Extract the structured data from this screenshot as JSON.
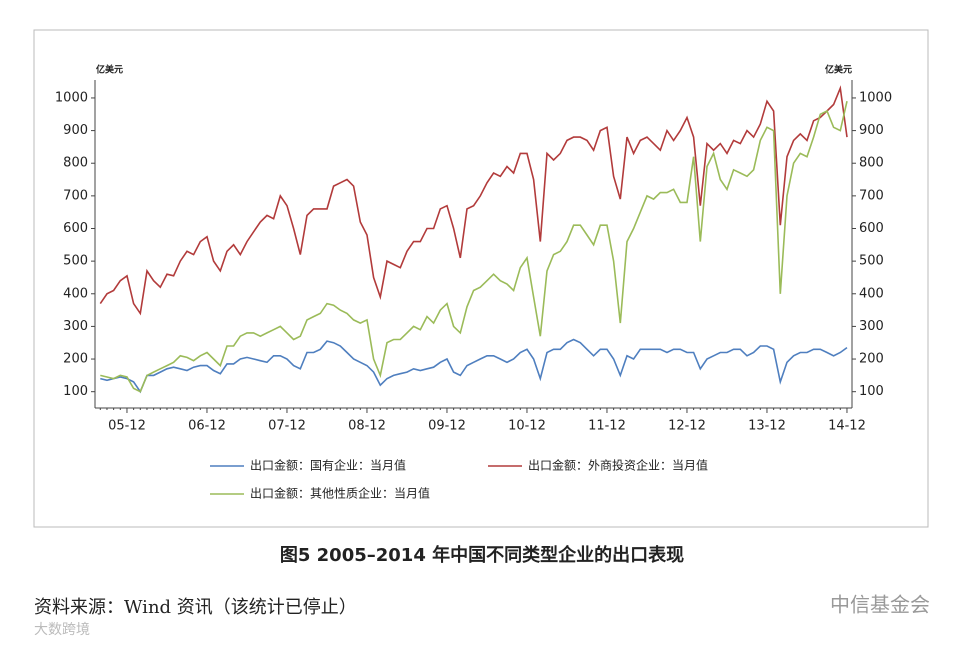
{
  "chart_data": {
    "type": "line",
    "y_label": "亿美元",
    "y2_label": "亿美元",
    "categories": [
      null,
      null,
      null,
      null,
      "05-12",
      null,
      null,
      null,
      null,
      null,
      null,
      null,
      null,
      null,
      null,
      null,
      "06-12",
      null,
      null,
      null,
      null,
      null,
      null,
      null,
      null,
      null,
      null,
      null,
      "07-12",
      null,
      null,
      null,
      null,
      null,
      null,
      null,
      null,
      null,
      null,
      null,
      "08-12",
      null,
      null,
      null,
      null,
      null,
      null,
      null,
      null,
      null,
      null,
      null,
      "09-12",
      null,
      null,
      null,
      null,
      null,
      null,
      null,
      null,
      null,
      null,
      null,
      "10-12",
      null,
      null,
      null,
      null,
      null,
      null,
      null,
      null,
      null,
      null,
      null,
      "11-12",
      null,
      null,
      null,
      null,
      null,
      null,
      null,
      null,
      null,
      null,
      null,
      "12-12",
      null,
      null,
      null,
      null,
      null,
      null,
      null,
      null,
      null,
      null,
      null,
      "13-12",
      null,
      null,
      null,
      null,
      null,
      null,
      null,
      null,
      null,
      null,
      null,
      "14-12"
    ],
    "series": [
      {
        "name": "出口金额：国有企业：当月值",
        "color": "#4f7fbf",
        "values": [
          140,
          135,
          140,
          145,
          140,
          130,
          100,
          150,
          150,
          160,
          170,
          175,
          170,
          165,
          175,
          180,
          180,
          165,
          155,
          185,
          185,
          200,
          205,
          200,
          195,
          190,
          210,
          210,
          200,
          180,
          170,
          220,
          220,
          230,
          255,
          250,
          240,
          220,
          200,
          190,
          180,
          160,
          120,
          140,
          150,
          155,
          160,
          170,
          165,
          170,
          175,
          190,
          200,
          160,
          150,
          180,
          190,
          200,
          210,
          210,
          200,
          190,
          200,
          220,
          230,
          200,
          140,
          220,
          230,
          230,
          250,
          260,
          250,
          230,
          210,
          230,
          230,
          200,
          150,
          210,
          200,
          230,
          230,
          230,
          230,
          220,
          230,
          230,
          220,
          220,
          170,
          200,
          210,
          220,
          220,
          230,
          230,
          210,
          220,
          240,
          240,
          230,
          130,
          190,
          210,
          220,
          220,
          230,
          230,
          220,
          210,
          220,
          235
        ]
      },
      {
        "name": "出口金额：外商投资企业：当月值",
        "color": "#b23b3b",
        "values": [
          370,
          400,
          410,
          440,
          455,
          370,
          340,
          470,
          440,
          420,
          460,
          455,
          500,
          530,
          520,
          560,
          575,
          500,
          470,
          530,
          550,
          520,
          560,
          590,
          620,
          640,
          630,
          700,
          670,
          600,
          520,
          640,
          660,
          660,
          660,
          730,
          740,
          750,
          730,
          620,
          580,
          450,
          390,
          500,
          490,
          480,
          530,
          560,
          560,
          600,
          600,
          660,
          670,
          600,
          510,
          660,
          670,
          700,
          740,
          770,
          760,
          790,
          770,
          830,
          830,
          750,
          560,
          830,
          810,
          830,
          870,
          880,
          880,
          870,
          840,
          900,
          910,
          760,
          690,
          880,
          830,
          870,
          880,
          860,
          840,
          900,
          870,
          900,
          940,
          880,
          670,
          860,
          840,
          860,
          830,
          870,
          860,
          900,
          880,
          920,
          990,
          960,
          610,
          820,
          870,
          890,
          870,
          930,
          940,
          960,
          980,
          1030,
          880
        ]
      },
      {
        "name": "出口金额：其他性质企业：当月值",
        "color": "#9bbb59",
        "values": [
          150,
          145,
          140,
          150,
          145,
          110,
          100,
          150,
          160,
          170,
          180,
          190,
          210,
          205,
          195,
          210,
          220,
          200,
          180,
          240,
          240,
          270,
          280,
          280,
          270,
          280,
          290,
          300,
          280,
          260,
          270,
          320,
          330,
          340,
          370,
          365,
          350,
          340,
          320,
          310,
          320,
          200,
          150,
          250,
          260,
          260,
          280,
          300,
          290,
          330,
          310,
          350,
          370,
          300,
          280,
          360,
          410,
          420,
          440,
          460,
          440,
          430,
          410,
          480,
          510,
          390,
          270,
          470,
          520,
          530,
          560,
          610,
          610,
          580,
          550,
          610,
          610,
          500,
          310,
          560,
          600,
          650,
          700,
          690,
          710,
          710,
          720,
          680,
          680,
          820,
          560,
          790,
          830,
          750,
          720,
          780,
          770,
          760,
          780,
          870,
          910,
          900,
          400,
          700,
          800,
          830,
          820,
          880,
          950,
          960,
          910,
          900,
          990
        ]
      }
    ],
    "ylim": [
      50,
      1055
    ],
    "yticks": [
      100,
      200,
      300,
      400,
      500,
      600,
      700,
      800,
      900,
      1000
    ],
    "y2lim": [
      50,
      1055
    ],
    "y2ticks": [
      100,
      200,
      300,
      400,
      500,
      600,
      700,
      800,
      900,
      1000
    ],
    "caption": "图5   2005–2014 年中国不同类型企业的出口表现"
  },
  "source": "资料来源：Wind 资讯（该统计已停止）",
  "watermarks": [
    "中信基金会",
    "大数跨境"
  ]
}
